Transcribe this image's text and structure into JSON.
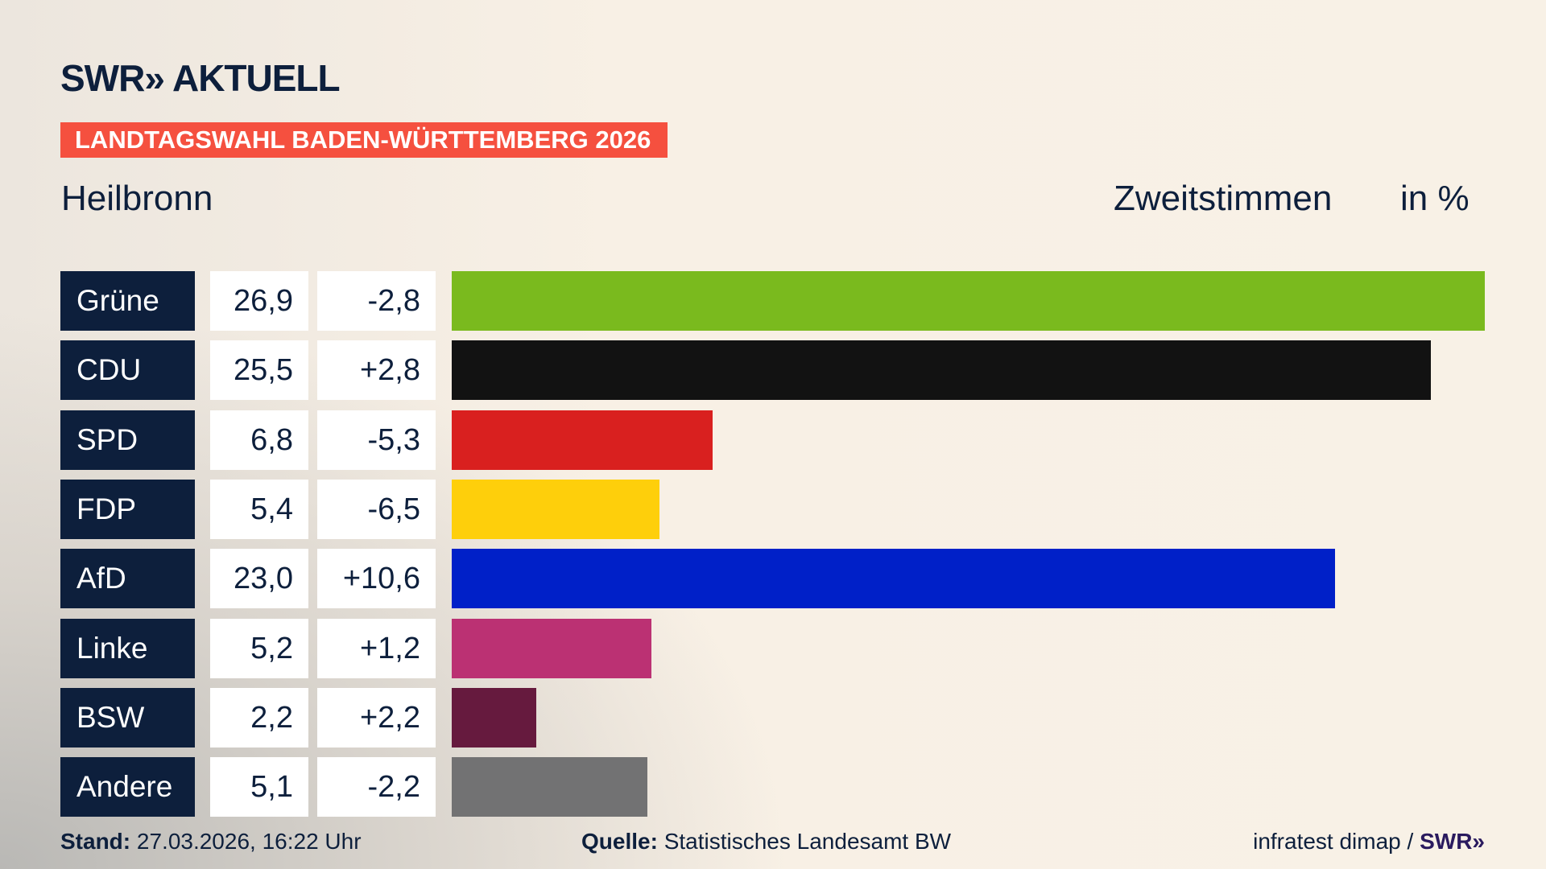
{
  "header": {
    "logo": "SWR» AKTUELL",
    "banner": "LANDTAGSWAHL BADEN-WÜRTTEMBERG 2026",
    "region": "Heilbronn",
    "measure": "Zweitstimmen",
    "unit": "in %"
  },
  "chart_data": {
    "type": "bar",
    "orientation": "horizontal",
    "categories": [
      "Grüne",
      "CDU",
      "SPD",
      "FDP",
      "AfD",
      "Linke",
      "BSW",
      "Andere"
    ],
    "values": [
      26.9,
      25.5,
      6.8,
      5.4,
      23.0,
      5.2,
      2.2,
      5.1
    ],
    "value_labels": [
      "26,9",
      "25,5",
      "6,8",
      "5,4",
      "23,0",
      "5,2",
      "2,2",
      "5,1"
    ],
    "diff_labels": [
      "-2,8",
      "+2,8",
      "-5,3",
      "-6,5",
      "+10,6",
      "+1,2",
      "+2,2",
      "-2,2"
    ],
    "diffs": [
      -2.8,
      2.8,
      -5.3,
      -6.5,
      10.6,
      1.2,
      2.2,
      -2.2
    ],
    "colors": [
      "#7aba1e",
      "#121212",
      "#d9201f",
      "#fecf0b",
      "#0020c8",
      "#bb3173",
      "#661a3e",
      "#727273"
    ],
    "grid": false
  },
  "footer": {
    "stand_label": "Stand:",
    "stand_value": "27.03.2026, 16:22 Uhr",
    "source_label": "Quelle:",
    "source_value": "Statistisches Landesamt BW",
    "credit": "infratest dimap / ",
    "credit_logo": "SWR»"
  }
}
